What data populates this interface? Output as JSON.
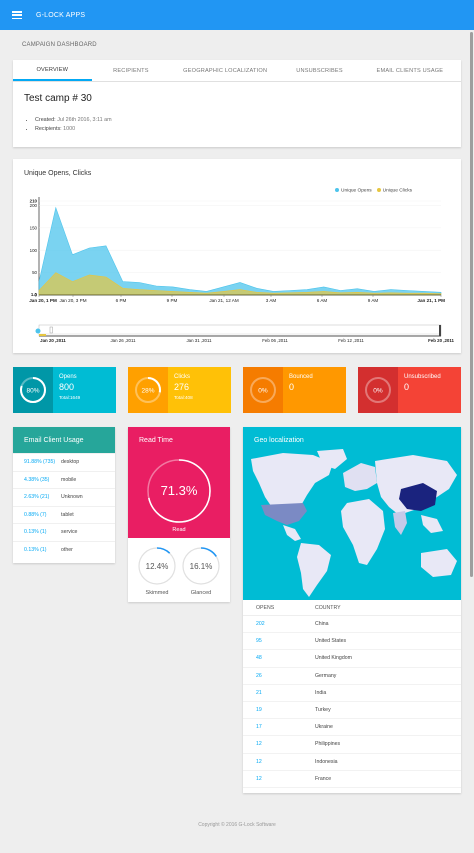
{
  "app": {
    "title": "G-LOCK APPS"
  },
  "breadcrumb": "CAMPAIGN DASHBOARD",
  "tabs": [
    "OVERVIEW",
    "RECIPIENTS",
    "GEOGRAPHIC LOCALIZATION",
    "UNSUBSCRIBES",
    "EMAIL CLIENTS USAGE"
  ],
  "campaign": {
    "title": "Test camp # 30",
    "created_label": "Created:",
    "created_value": "Jul 26th 2016, 3:11 am",
    "recipients_label": "Recipients:",
    "recipients_value": "1000"
  },
  "chart_data": {
    "type": "area",
    "title": "Unique Opens, Clicks",
    "y_ticks": [
      "210",
      "200",
      "150",
      "100",
      "50",
      "1.0",
      "0"
    ],
    "x_tick_labels": [
      "Jan 20, 1 PM",
      "Jan 20, 3 PM",
      "6 PM",
      "9 PM",
      "Jan 21, 12 AM",
      "3 AM",
      "6 AM",
      "9 AM",
      "Jan 21, 1 PM"
    ],
    "navigator_labels": [
      "Jan 20 ,2011",
      "Jan 26 ,2011",
      "Jan 31 ,2011",
      "Feb 06 ,2011",
      "Feb 12 ,2011",
      "Feb 20 ,2011"
    ],
    "ylim": [
      0,
      210
    ],
    "series": [
      {
        "name": "Unique Opens",
        "color": "#4dc4ec",
        "values": [
          30,
          195,
          90,
          105,
          110,
          30,
          28,
          20,
          18,
          12,
          8,
          18,
          28,
          15,
          8,
          10,
          12,
          18,
          10,
          14,
          8,
          12,
          10,
          8,
          6
        ]
      },
      {
        "name": "Unique Clicks",
        "color": "#e6c640",
        "values": [
          10,
          50,
          30,
          45,
          40,
          15,
          12,
          10,
          8,
          6,
          4,
          8,
          12,
          6,
          4,
          5,
          6,
          8,
          5,
          6,
          4,
          5,
          4,
          4,
          3
        ]
      }
    ]
  },
  "stats": [
    {
      "label": "Opens",
      "value": "800",
      "ring": "80%",
      "total": "Total:1649",
      "percent": 80,
      "color": "#00bcd4",
      "dark": "#0097a7"
    },
    {
      "label": "Clicks",
      "value": "276",
      "ring": "28%",
      "total": "Total:408",
      "percent": 28,
      "color": "#ffc107",
      "dark": "#ffa000"
    },
    {
      "label": "Bounced",
      "value": "0",
      "ring": "0%",
      "total": "",
      "percent": 0,
      "color": "#ff9800",
      "dark": "#f57c00"
    },
    {
      "label": "Unsubscribed",
      "value": "0",
      "ring": "0%",
      "total": "",
      "percent": 0,
      "color": "#f44336",
      "dark": "#d32f2f"
    }
  ],
  "email_clients": {
    "title": "Email Client Usage",
    "rows": [
      {
        "pct": "91.88% (735)",
        "name": "desktop"
      },
      {
        "pct": "4.38% (35)",
        "name": "mobile"
      },
      {
        "pct": "2.63% (21)",
        "name": "Unknown"
      },
      {
        "pct": "0.88% (7)",
        "name": "tablet"
      },
      {
        "pct": "0.13% (1)",
        "name": "service"
      },
      {
        "pct": "0.13% (1)",
        "name": "other"
      }
    ]
  },
  "read_time": {
    "title": "Read Time",
    "read_value": "71.3%",
    "read_label": "Read",
    "read_percent": 71.3,
    "skimmed_value": "12.4%",
    "skimmed_label": "Skimmed",
    "skimmed_percent": 12.4,
    "glanced_value": "16.1%",
    "glanced_label": "Glanced",
    "glanced_percent": 16.1
  },
  "geo": {
    "title": "Geo localization",
    "col_opens": "OPENS",
    "col_country": "COUNTRY",
    "rows": [
      {
        "opens": "202",
        "country": "China"
      },
      {
        "opens": "95",
        "country": "United States"
      },
      {
        "opens": "48",
        "country": "United Kingdom"
      },
      {
        "opens": "26",
        "country": "Germany"
      },
      {
        "opens": "21",
        "country": "India"
      },
      {
        "opens": "19",
        "country": "Turkey"
      },
      {
        "opens": "17",
        "country": "Ukraine"
      },
      {
        "opens": "12",
        "country": "Philippines"
      },
      {
        "opens": "12",
        "country": "Indonesia"
      },
      {
        "opens": "12",
        "country": "France"
      }
    ]
  },
  "footer": "Copyright © 2016 G-Lock Software"
}
